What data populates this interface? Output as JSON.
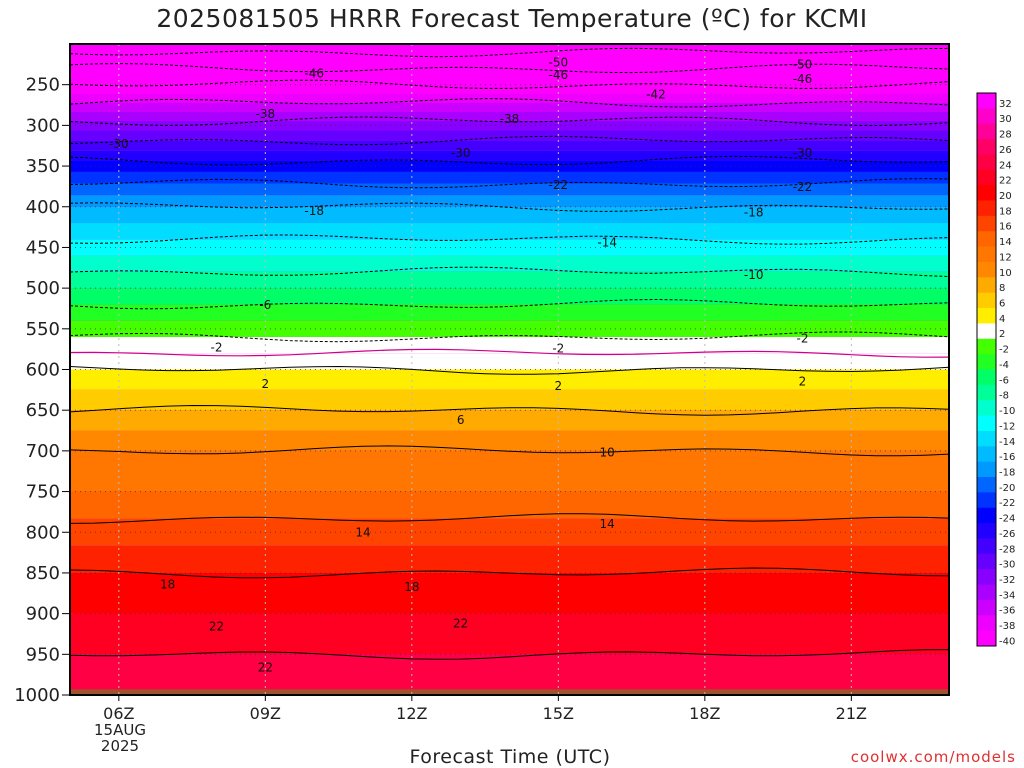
{
  "chart_data": {
    "type": "heatmap",
    "title": "2025081505 HRRR Forecast Temperature (ºC) for KCMI",
    "xlabel": "Forecast Time (UTC)",
    "ylabel": "",
    "x_ticks": [
      "06Z",
      "09Z",
      "12Z",
      "15Z",
      "18Z",
      "21Z"
    ],
    "x_date": [
      "15AUG",
      "2025"
    ],
    "y_ticks": [
      250,
      300,
      350,
      400,
      450,
      500,
      550,
      600,
      650,
      700,
      750,
      800,
      850,
      900,
      950,
      1000
    ],
    "ylim": [
      1000,
      200
    ],
    "colorbar": {
      "ticks": [
        32,
        30,
        28,
        26,
        24,
        22,
        20,
        18,
        16,
        14,
        12,
        10,
        8,
        6,
        4,
        2,
        -2,
        -4,
        -6,
        -8,
        -10,
        -12,
        -14,
        -16,
        -18,
        -20,
        -22,
        -24,
        -26,
        -28,
        -30,
        -32,
        -34,
        -36,
        -38,
        -40
      ],
      "colors": [
        "#ff00ff",
        "#ff00cc",
        "#ff0099",
        "#ff0066",
        "#ff0044",
        "#ff0022",
        "#ff0000",
        "#ff2200",
        "#ff4400",
        "#ff6600",
        "#ff7700",
        "#ff8800",
        "#ffaa00",
        "#ffcc00",
        "#ffee00",
        "#ffffff",
        "#44ff00",
        "#22ff22",
        "#00ff66",
        "#00ff99",
        "#00ffcc",
        "#00ffff",
        "#00ddff",
        "#00bbff",
        "#0099ff",
        "#0066ff",
        "#0033ff",
        "#0000ff",
        "#2200ff",
        "#4400ff",
        "#6600ff",
        "#8800ff",
        "#aa00ff",
        "#cc00ff",
        "#ee00ff",
        "#ff00ff"
      ]
    },
    "temperature_profile": [
      {
        "pressure": 1000,
        "temp": 24
      },
      {
        "pressure": 950,
        "temp": 22
      },
      {
        "pressure": 900,
        "temp": 20
      },
      {
        "pressure": 850,
        "temp": 18
      },
      {
        "pressure": 800,
        "temp": 15
      },
      {
        "pressure": 750,
        "temp": 12
      },
      {
        "pressure": 700,
        "temp": 10
      },
      {
        "pressure": 650,
        "temp": 6
      },
      {
        "pressure": 600,
        "temp": 2
      },
      {
        "pressure": 550,
        "temp": -3
      },
      {
        "pressure": 500,
        "temp": -8
      },
      {
        "pressure": 450,
        "temp": -13
      },
      {
        "pressure": 400,
        "temp": -18
      },
      {
        "pressure": 350,
        "temp": -25
      },
      {
        "pressure": 300,
        "temp": -33
      },
      {
        "pressure": 250,
        "temp": -42
      },
      {
        "pressure": 200,
        "temp": -52
      }
    ],
    "contour_labels": [
      {
        "text": "-50",
        "x": 15.0,
        "p": 223
      },
      {
        "text": "-50",
        "x": 20.0,
        "p": 225
      },
      {
        "text": "-46",
        "x": 10.0,
        "p": 236
      },
      {
        "text": "-46",
        "x": 15.0,
        "p": 238
      },
      {
        "text": "-46",
        "x": 20.0,
        "p": 243
      },
      {
        "text": "-42",
        "x": 17.0,
        "p": 262
      },
      {
        "text": "-38",
        "x": 9.0,
        "p": 286
      },
      {
        "text": "-38",
        "x": 14.0,
        "p": 292
      },
      {
        "text": "-30",
        "x": 6.0,
        "p": 323
      },
      {
        "text": "-30",
        "x": 13.0,
        "p": 334
      },
      {
        "text": "-30",
        "x": 20.0,
        "p": 334
      },
      {
        "text": "-22",
        "x": 15.0,
        "p": 373
      },
      {
        "text": "-22",
        "x": 20.0,
        "p": 376
      },
      {
        "text": "-18",
        "x": 10.0,
        "p": 405
      },
      {
        "text": "-18",
        "x": 19.0,
        "p": 407
      },
      {
        "text": "-14",
        "x": 16.0,
        "p": 444
      },
      {
        "text": "-10",
        "x": 19.0,
        "p": 484
      },
      {
        "text": "-6",
        "x": 9.0,
        "p": 521
      },
      {
        "text": "-2",
        "x": 8.0,
        "p": 573
      },
      {
        "text": "-2",
        "x": 15.0,
        "p": 574
      },
      {
        "text": "-2",
        "x": 20.0,
        "p": 562
      },
      {
        "text": "2",
        "x": 9.0,
        "p": 618
      },
      {
        "text": "2",
        "x": 15.0,
        "p": 620
      },
      {
        "text": "2",
        "x": 20.0,
        "p": 615
      },
      {
        "text": "6",
        "x": 13.0,
        "p": 662
      },
      {
        "text": "10",
        "x": 16.0,
        "p": 702
      },
      {
        "text": "14",
        "x": 11.0,
        "p": 800
      },
      {
        "text": "14",
        "x": 16.0,
        "p": 790
      },
      {
        "text": "18",
        "x": 7.0,
        "p": 864
      },
      {
        "text": "18",
        "x": 12.0,
        "p": 867
      },
      {
        "text": "22",
        "x": 8.0,
        "p": 916
      },
      {
        "text": "22",
        "x": 13.0,
        "p": 912
      },
      {
        "text": "22",
        "x": 9.0,
        "p": 966
      }
    ],
    "x_range_hours": [
      5,
      23
    ],
    "ground_color": "#a0522d",
    "credit": "coolwx.com/models"
  }
}
